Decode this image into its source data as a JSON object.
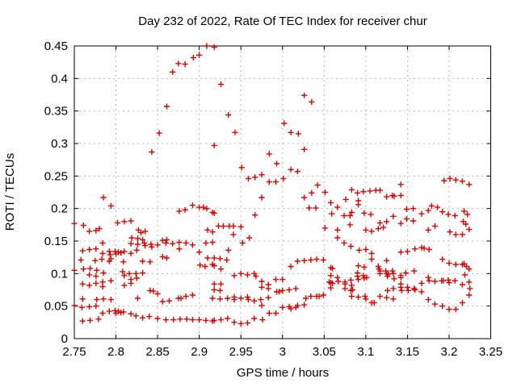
{
  "window": {
    "title": "Day 232 of 2022, Rate Of TEC Index for receiver chur"
  },
  "chart_data": {
    "type": "scatter",
    "title": "Day 232 of 2022, Rate Of TEC Index for receiver chur",
    "xlabel": "GPS time / hours",
    "ylabel": "ROTI / TECUs",
    "xlim": [
      2.75,
      3.25
    ],
    "ylim": [
      0,
      0.45
    ],
    "xticks": [
      "2.75",
      "2.8",
      "2.85",
      "2.9",
      "2.95",
      "3",
      "3.05",
      "3.1",
      "3.15",
      "3.2",
      "3.25"
    ],
    "yticks": [
      "0",
      "0.05",
      "0.1",
      "0.15",
      "0.2",
      "0.25",
      "0.3",
      "0.35",
      "0.4",
      "0.45"
    ],
    "grid": true,
    "legend": "none",
    "marker": "plus",
    "marker_color": "#e00000",
    "grid_color": "#b8b8b8",
    "axis_color": "#000000",
    "series_name": "ROTI",
    "points": [
      [
        2.852,
        0.316
      ],
      [
        2.861,
        0.357
      ],
      [
        2.868,
        0.41
      ],
      [
        2.875,
        0.423
      ],
      [
        2.883,
        0.422
      ],
      [
        2.893,
        0.432
      ],
      [
        2.9,
        0.436
      ],
      [
        2.909,
        0.45
      ],
      [
        2.918,
        0.448
      ],
      [
        2.926,
        0.391
      ],
      [
        2.935,
        0.344
      ],
      [
        2.943,
        0.317
      ],
      [
        2.918,
        0.297
      ],
      [
        2.984,
        0.284
      ],
      [
        2.993,
        0.269
      ],
      [
        2.951,
        0.263
      ],
      [
        3.002,
        0.331
      ],
      [
        3.01,
        0.317
      ],
      [
        3.019,
        0.315
      ],
      [
        3.026,
        0.374
      ],
      [
        3.035,
        0.364
      ],
      [
        3.026,
        0.291
      ],
      [
        3.01,
        0.26
      ],
      [
        3.018,
        0.257
      ],
      [
        2.975,
        0.252
      ],
      [
        2.959,
        0.246
      ],
      [
        2.967,
        0.248
      ],
      [
        2.984,
        0.241
      ],
      [
        2.992,
        0.241
      ],
      [
        3.001,
        0.246
      ],
      [
        3.042,
        0.236
      ],
      [
        3.035,
        0.224
      ],
      [
        3.026,
        0.217
      ],
      [
        3.051,
        0.225
      ],
      [
        2.975,
        0.217
      ],
      [
        3.076,
        0.214
      ],
      [
        3.058,
        0.209
      ],
      [
        3.066,
        0.202
      ],
      [
        3.032,
        0.201
      ],
      [
        3.04,
        0.201
      ],
      [
        3.059,
        0.192
      ],
      [
        3.074,
        0.189
      ],
      [
        3.081,
        0.189
      ],
      [
        2.843,
        0.287
      ],
      [
        2.785,
        0.217
      ],
      [
        2.794,
        0.204
      ],
      [
        2.876,
        0.196
      ],
      [
        2.883,
        0.198
      ],
      [
        2.892,
        0.205
      ],
      [
        2.9,
        0.202
      ],
      [
        2.905,
        0.202
      ],
      [
        2.909,
        0.2
      ],
      [
        2.916,
        0.194
      ],
      [
        2.918,
        0.193
      ],
      [
        2.75,
        0.177
      ],
      [
        2.761,
        0.174
      ],
      [
        2.768,
        0.165
      ],
      [
        2.776,
        0.166
      ],
      [
        2.78,
        0.169
      ],
      [
        2.802,
        0.178
      ],
      [
        2.81,
        0.18
      ],
      [
        2.818,
        0.181
      ],
      [
        2.827,
        0.167
      ],
      [
        2.83,
        0.163
      ],
      [
        2.835,
        0.165
      ],
      [
        2.819,
        0.155
      ],
      [
        2.826,
        0.154
      ],
      [
        2.832,
        0.152
      ],
      [
        2.856,
        0.151
      ],
      [
        2.861,
        0.152
      ],
      [
        2.91,
        0.167
      ],
      [
        2.916,
        0.164
      ],
      [
        2.923,
        0.173
      ],
      [
        2.929,
        0.173
      ],
      [
        2.936,
        0.173
      ],
      [
        2.941,
        0.173
      ],
      [
        2.95,
        0.172
      ],
      [
        2.941,
        0.16
      ],
      [
        2.96,
        0.155
      ],
      [
        2.967,
        0.19
      ],
      [
        3.051,
        0.17
      ],
      [
        3.066,
        0.167
      ],
      [
        3.066,
        0.155
      ],
      [
        3.081,
        0.175
      ],
      [
        3.194,
        0.243
      ],
      [
        3.201,
        0.246
      ],
      [
        3.208,
        0.244
      ],
      [
        3.216,
        0.242
      ],
      [
        3.224,
        0.237
      ],
      [
        3.142,
        0.237
      ],
      [
        3.083,
        0.229
      ],
      [
        3.09,
        0.224
      ],
      [
        3.097,
        0.226
      ],
      [
        3.105,
        0.227
      ],
      [
        3.112,
        0.228
      ],
      [
        3.117,
        0.228
      ],
      [
        3.125,
        0.218
      ],
      [
        3.132,
        0.22
      ],
      [
        3.134,
        0.219
      ],
      [
        3.142,
        0.22
      ],
      [
        3.091,
        0.212
      ],
      [
        3.091,
        0.206
      ],
      [
        3.083,
        0.194
      ],
      [
        3.098,
        0.193
      ],
      [
        3.106,
        0.191
      ],
      [
        3.179,
        0.204
      ],
      [
        3.186,
        0.202
      ],
      [
        3.192,
        0.195
      ],
      [
        3.157,
        0.2
      ],
      [
        3.149,
        0.199
      ],
      [
        3.167,
        0.192
      ],
      [
        3.175,
        0.197
      ],
      [
        3.199,
        0.191
      ],
      [
        3.207,
        0.189
      ],
      [
        3.218,
        0.196
      ],
      [
        3.222,
        0.191
      ],
      [
        3.217,
        0.18
      ],
      [
        3.22,
        0.176
      ],
      [
        3.133,
        0.188
      ],
      [
        3.149,
        0.184
      ],
      [
        3.157,
        0.181
      ],
      [
        3.125,
        0.18
      ],
      [
        3.117,
        0.178
      ],
      [
        3.142,
        0.177
      ],
      [
        3.1,
        0.167
      ],
      [
        3.107,
        0.165
      ],
      [
        3.115,
        0.169
      ],
      [
        3.121,
        0.171
      ],
      [
        3.175,
        0.167
      ],
      [
        3.183,
        0.173
      ],
      [
        3.201,
        0.164
      ],
      [
        3.208,
        0.16
      ],
      [
        3.216,
        0.16
      ],
      [
        3.224,
        0.168
      ],
      [
        2.784,
        0.147
      ],
      [
        2.818,
        0.146
      ],
      [
        2.826,
        0.145
      ],
      [
        2.834,
        0.147
      ],
      [
        2.835,
        0.143
      ],
      [
        2.842,
        0.145
      ],
      [
        2.843,
        0.141
      ],
      [
        2.85,
        0.144
      ],
      [
        2.86,
        0.147
      ],
      [
        2.868,
        0.146
      ],
      [
        2.876,
        0.148
      ],
      [
        2.884,
        0.147
      ],
      [
        2.892,
        0.144
      ],
      [
        2.908,
        0.147
      ],
      [
        2.916,
        0.148
      ],
      [
        2.952,
        0.147
      ],
      [
        3.074,
        0.147
      ],
      [
        3.082,
        0.142
      ],
      [
        2.76,
        0.135
      ],
      [
        2.768,
        0.137
      ],
      [
        2.776,
        0.138
      ],
      [
        2.784,
        0.131
      ],
      [
        2.792,
        0.134
      ],
      [
        2.793,
        0.129
      ],
      [
        2.799,
        0.134
      ],
      [
        2.8,
        0.13
      ],
      [
        2.803,
        0.133
      ],
      [
        2.806,
        0.132
      ],
      [
        2.81,
        0.134
      ],
      [
        2.818,
        0.131
      ],
      [
        2.825,
        0.136
      ],
      [
        2.876,
        0.138
      ],
      [
        2.9,
        0.133
      ],
      [
        2.935,
        0.136
      ],
      [
        3.092,
        0.136
      ],
      [
        3.1,
        0.137
      ],
      [
        3.107,
        0.131
      ],
      [
        3.142,
        0.133
      ],
      [
        3.15,
        0.134
      ],
      [
        3.159,
        0.138
      ],
      [
        3.167,
        0.14
      ],
      [
        3.17,
        0.139
      ],
      [
        3.176,
        0.137
      ],
      [
        2.758,
        0.121
      ],
      [
        2.775,
        0.12
      ],
      [
        2.783,
        0.122
      ],
      [
        2.792,
        0.119
      ],
      [
        2.794,
        0.123
      ],
      [
        2.809,
        0.118
      ],
      [
        2.832,
        0.119
      ],
      [
        2.841,
        0.118
      ],
      [
        2.856,
        0.126
      ],
      [
        2.861,
        0.124
      ],
      [
        2.91,
        0.124
      ],
      [
        2.918,
        0.124
      ],
      [
        2.925,
        0.123
      ],
      [
        2.933,
        0.121
      ],
      [
        3.018,
        0.119
      ],
      [
        3.026,
        0.12
      ],
      [
        3.034,
        0.121
      ],
      [
        3.041,
        0.122
      ],
      [
        3.049,
        0.121
      ],
      [
        3.107,
        0.122
      ],
      [
        3.125,
        0.12
      ],
      [
        3.192,
        0.122
      ],
      [
        3.2,
        0.116
      ],
      [
        3.208,
        0.114
      ],
      [
        3.216,
        0.114
      ],
      [
        3.218,
        0.115
      ],
      [
        3.221,
        0.111
      ],
      [
        2.901,
        0.113
      ],
      [
        2.907,
        0.111
      ],
      [
        2.916,
        0.114
      ],
      [
        2.918,
        0.112
      ],
      [
        2.926,
        0.107
      ],
      [
        2.75,
        0.105
      ],
      [
        2.761,
        0.107
      ],
      [
        2.769,
        0.108
      ],
      [
        2.777,
        0.105
      ],
      [
        2.785,
        0.101
      ],
      [
        3.01,
        0.111
      ],
      [
        3.058,
        0.109
      ],
      [
        3.06,
        0.108
      ],
      [
        3.091,
        0.112
      ],
      [
        3.098,
        0.11
      ],
      [
        3.115,
        0.111
      ],
      [
        3.116,
        0.107
      ],
      [
        3.117,
        0.104
      ],
      [
        3.124,
        0.104
      ],
      [
        3.132,
        0.104
      ],
      [
        3.148,
        0.101
      ],
      [
        3.158,
        0.104
      ],
      [
        3.224,
        0.107
      ],
      [
        2.768,
        0.098
      ],
      [
        2.776,
        0.096
      ],
      [
        2.808,
        0.103
      ],
      [
        2.81,
        0.097
      ],
      [
        2.816,
        0.1
      ],
      [
        2.824,
        0.1
      ],
      [
        2.832,
        0.101
      ],
      [
        2.825,
        0.093
      ],
      [
        2.818,
        0.091
      ],
      [
        2.942,
        0.097
      ],
      [
        2.95,
        0.1
      ],
      [
        2.958,
        0.098
      ],
      [
        2.966,
        0.1
      ],
      [
        2.968,
        0.096
      ],
      [
        3.09,
        0.101
      ],
      [
        3.097,
        0.097
      ],
      [
        3.101,
        0.094
      ],
      [
        3.117,
        0.1
      ],
      [
        3.125,
        0.1
      ],
      [
        3.127,
        0.099
      ],
      [
        3.126,
        0.096
      ],
      [
        3.133,
        0.1
      ],
      [
        3.134,
        0.092
      ],
      [
        3.142,
        0.097
      ],
      [
        3.142,
        0.094
      ],
      [
        3.09,
        0.096
      ],
      [
        3.091,
        0.091
      ],
      [
        3.098,
        0.093
      ],
      [
        3.219,
        0.098
      ],
      [
        2.76,
        0.084
      ],
      [
        2.768,
        0.082
      ],
      [
        2.776,
        0.085
      ],
      [
        2.784,
        0.087
      ],
      [
        2.784,
        0.08
      ],
      [
        2.794,
        0.089
      ],
      [
        2.81,
        0.082
      ],
      [
        2.818,
        0.085
      ],
      [
        2.975,
        0.088
      ],
      [
        2.983,
        0.083
      ],
      [
        2.992,
        0.091
      ],
      [
        3.0,
        0.091
      ],
      [
        2.918,
        0.084
      ],
      [
        2.926,
        0.084
      ],
      [
        3.056,
        0.087
      ],
      [
        3.058,
        0.086
      ],
      [
        3.06,
        0.085
      ],
      [
        3.067,
        0.088
      ],
      [
        3.066,
        0.094
      ],
      [
        3.058,
        0.097
      ],
      [
        3.075,
        0.087
      ],
      [
        3.075,
        0.084
      ],
      [
        3.082,
        0.09
      ],
      [
        3.142,
        0.084
      ],
      [
        3.167,
        0.085
      ],
      [
        3.175,
        0.094
      ],
      [
        3.176,
        0.089
      ],
      [
        3.183,
        0.088
      ],
      [
        3.191,
        0.089
      ],
      [
        3.193,
        0.089
      ],
      [
        3.199,
        0.09
      ],
      [
        3.2,
        0.086
      ],
      [
        3.207,
        0.089
      ],
      [
        3.216,
        0.083
      ],
      [
        3.224,
        0.087
      ],
      [
        2.841,
        0.074
      ],
      [
        2.845,
        0.073
      ],
      [
        2.918,
        0.075
      ],
      [
        2.925,
        0.074
      ],
      [
        2.975,
        0.079
      ],
      [
        2.983,
        0.077
      ],
      [
        2.993,
        0.072
      ],
      [
        2.996,
        0.072
      ],
      [
        3.0,
        0.074
      ],
      [
        3.008,
        0.075
      ],
      [
        3.016,
        0.077
      ],
      [
        3.083,
        0.082
      ],
      [
        3.084,
        0.075
      ],
      [
        3.082,
        0.074
      ],
      [
        3.075,
        0.077
      ],
      [
        3.058,
        0.078
      ],
      [
        3.126,
        0.074
      ],
      [
        3.133,
        0.077
      ],
      [
        3.142,
        0.079
      ],
      [
        3.143,
        0.074
      ],
      [
        3.15,
        0.079
      ],
      [
        3.151,
        0.074
      ],
      [
        3.158,
        0.077
      ],
      [
        3.167,
        0.072
      ],
      [
        3.159,
        0.075
      ],
      [
        3.225,
        0.077
      ],
      [
        2.76,
        0.061
      ],
      [
        2.777,
        0.06
      ],
      [
        2.785,
        0.061
      ],
      [
        2.794,
        0.06
      ],
      [
        2.826,
        0.062
      ],
      [
        2.856,
        0.057
      ],
      [
        2.864,
        0.058
      ],
      [
        2.875,
        0.062
      ],
      [
        2.878,
        0.062
      ],
      [
        2.884,
        0.065
      ],
      [
        2.892,
        0.067
      ],
      [
        2.916,
        0.062
      ],
      [
        2.925,
        0.061
      ],
      [
        2.934,
        0.062
      ],
      [
        2.942,
        0.064
      ],
      [
        2.942,
        0.06
      ],
      [
        2.95,
        0.062
      ],
      [
        2.958,
        0.064
      ],
      [
        2.959,
        0.06
      ],
      [
        2.966,
        0.058
      ],
      [
        2.974,
        0.06
      ],
      [
        2.983,
        0.063
      ],
      [
        3.028,
        0.062
      ],
      [
        3.034,
        0.065
      ],
      [
        3.041,
        0.065
      ],
      [
        3.044,
        0.065
      ],
      [
        3.049,
        0.067
      ],
      [
        3.083,
        0.065
      ],
      [
        3.091,
        0.064
      ],
      [
        3.099,
        0.065
      ],
      [
        3.1,
        0.061
      ],
      [
        3.117,
        0.065
      ],
      [
        3.125,
        0.063
      ],
      [
        3.133,
        0.061
      ],
      [
        3.175,
        0.06
      ],
      [
        3.216,
        0.055
      ],
      [
        3.224,
        0.067
      ],
      [
        3.107,
        0.055
      ],
      [
        3.11,
        0.055
      ],
      [
        2.85,
        0.069
      ],
      [
        2.75,
        0.051
      ],
      [
        2.759,
        0.048
      ],
      [
        2.768,
        0.049
      ],
      [
        2.776,
        0.05
      ],
      [
        2.975,
        0.051
      ],
      [
        3.0,
        0.048
      ],
      [
        3.008,
        0.049
      ],
      [
        3.01,
        0.046
      ],
      [
        3.016,
        0.048
      ],
      [
        3.018,
        0.051
      ],
      [
        3.026,
        0.052
      ],
      [
        3.183,
        0.053
      ],
      [
        3.192,
        0.05
      ],
      [
        3.2,
        0.045
      ],
      [
        3.208,
        0.045
      ],
      [
        2.784,
        0.039
      ],
      [
        2.792,
        0.042
      ],
      [
        2.799,
        0.043
      ],
      [
        2.8,
        0.039
      ],
      [
        2.803,
        0.042
      ],
      [
        2.806,
        0.04
      ],
      [
        2.809,
        0.041
      ],
      [
        2.818,
        0.038
      ],
      [
        2.824,
        0.035
      ],
      [
        2.984,
        0.039
      ],
      [
        2.992,
        0.039
      ],
      [
        2.76,
        0.027
      ],
      [
        2.769,
        0.028
      ],
      [
        2.779,
        0.03
      ],
      [
        2.832,
        0.032
      ],
      [
        2.84,
        0.034
      ],
      [
        2.85,
        0.031
      ],
      [
        2.86,
        0.029
      ],
      [
        2.869,
        0.029
      ],
      [
        2.877,
        0.03
      ],
      [
        2.885,
        0.03
      ],
      [
        2.892,
        0.029
      ],
      [
        2.9,
        0.029
      ],
      [
        2.908,
        0.028
      ],
      [
        2.916,
        0.027
      ],
      [
        2.918,
        0.028
      ],
      [
        2.926,
        0.029
      ],
      [
        2.934,
        0.031
      ],
      [
        2.942,
        0.025
      ],
      [
        2.95,
        0.023
      ],
      [
        2.958,
        0.024
      ],
      [
        2.966,
        0.031
      ],
      [
        2.976,
        0.029
      ]
    ]
  }
}
